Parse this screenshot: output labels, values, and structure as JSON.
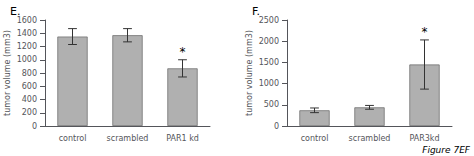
{
  "chart_data": [
    {
      "type": "bar",
      "title": "E.",
      "categories": [
        "control",
        "scrambled",
        "PAR1 kd"
      ],
      "values": [
        1350,
        1370,
        870
      ],
      "errors": [
        120,
        100,
        130
      ],
      "ylim": [
        0,
        1600
      ],
      "yticks": [
        0,
        200,
        400,
        600,
        800,
        1000,
        1200,
        1400,
        1600
      ],
      "ylabel": "tumor volume (mm3)",
      "color": "#b0b0b0",
      "grid": false,
      "annotations": [
        {
          "text": "*",
          "category": "PAR1 kd"
        }
      ]
    },
    {
      "type": "bar",
      "title": "F.",
      "categories": [
        "control",
        "scrambled",
        "PAR3kd"
      ],
      "values": [
        370,
        440,
        1450
      ],
      "errors": [
        55,
        45,
        580
      ],
      "ylim": [
        0,
        2500
      ],
      "yticks": [
        0,
        500,
        1000,
        1500,
        2000,
        2500
      ],
      "ylabel": "tumor volume (mm3)",
      "color": "#b0b0b0",
      "grid": false,
      "annotations": [
        {
          "text": "*",
          "category": "PAR3kd"
        },
        {
          "text": "Figure 7EF"
        }
      ]
    }
  ]
}
